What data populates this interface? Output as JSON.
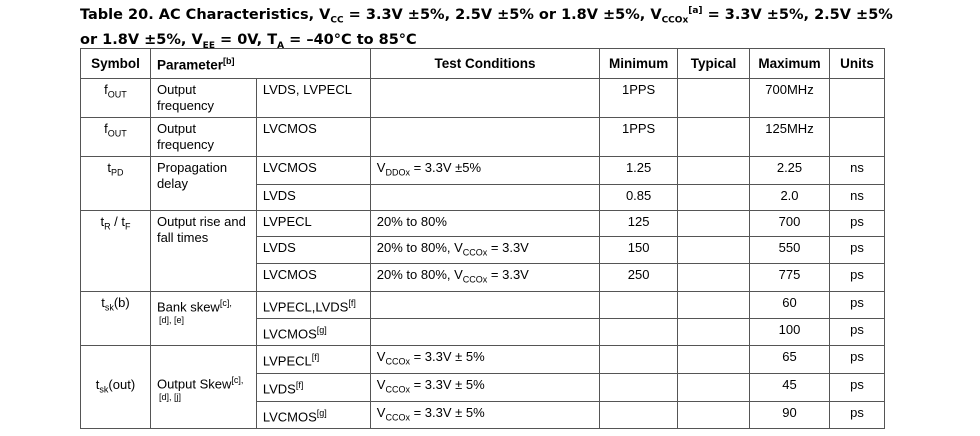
{
  "title": [
    {
      "t": "Table 20.  AC Characteristics, V"
    },
    {
      "sub": "CC"
    },
    {
      "t": " = 3.3V ±5%, 2.5V ±5% or 1.8V ±5%, V"
    },
    {
      "sub": "CCOx"
    },
    {
      "sup": "[a]"
    },
    {
      "t": " = 3.3V ±5%, 2.5V ±5% or 1.8V ±5%, V"
    },
    {
      "sub": "EE"
    },
    {
      "t": " = 0V, T"
    },
    {
      "sub": "A"
    },
    {
      "t": " = –40°C to 85°C"
    }
  ],
  "table": {
    "header": [
      [
        {
          "t": "Symbol"
        }
      ],
      [
        {
          "t": "Parameter"
        },
        {
          "sup": "[b]"
        }
      ],
      [
        {
          "t": "Test Conditions"
        }
      ],
      [
        {
          "t": "Minimum"
        }
      ],
      [
        {
          "t": "Typical"
        }
      ],
      [
        {
          "t": "Maximum"
        }
      ],
      [
        {
          "t": "Units"
        }
      ]
    ],
    "groups": [
      {
        "symbol": [
          {
            "t": "f"
          },
          {
            "sub": "OUT"
          }
        ],
        "parameter": [
          {
            "t": "Output frequency"
          }
        ],
        "lines": [
          {
            "type": [
              {
                "t": "LVDS, LVPECL"
              }
            ],
            "min": "1PPS",
            "max": "700MHz"
          }
        ]
      },
      {
        "symbol": [
          {
            "t": "f"
          },
          {
            "sub": "OUT"
          }
        ],
        "parameter": [
          {
            "t": "Output frequency"
          }
        ],
        "lines": [
          {
            "type": [
              {
                "t": "LVCMOS"
              }
            ],
            "min": "1PPS",
            "max": "125MHz"
          }
        ]
      },
      {
        "symbol": [
          {
            "t": "t"
          },
          {
            "sub": "PD"
          }
        ],
        "parameter": [
          {
            "t": "Propagation delay"
          }
        ],
        "lines": [
          {
            "type": [
              {
                "t": "LVCMOS"
              }
            ],
            "conditions": [
              {
                "t": "V"
              },
              {
                "sub": "DDOx"
              },
              {
                "t": " = 3.3V ±5%"
              }
            ],
            "min": "1.25",
            "max": "2.25",
            "units": "ns"
          },
          {
            "type": [
              {
                "t": "LVDS"
              }
            ],
            "min": "0.85",
            "max": "2.0",
            "units": "ns"
          }
        ]
      },
      {
        "symbol": [
          {
            "t": "t"
          },
          {
            "sub": "R"
          },
          {
            "t": " / t"
          },
          {
            "sub": "F"
          }
        ],
        "parameter": [
          {
            "t": "Output rise and fall times"
          }
        ],
        "lines": [
          {
            "type": [
              {
                "t": "LVPECL"
              }
            ],
            "conditions": [
              {
                "t": "20% to 80%"
              }
            ],
            "min": "125",
            "max": "700",
            "units": "ps"
          },
          {
            "type": [
              {
                "t": "LVDS"
              }
            ],
            "conditions": [
              {
                "t": "20% to 80%, V"
              },
              {
                "sub": "CCOx"
              },
              {
                "t": " = 3.3V"
              }
            ],
            "min": "150",
            "max": "550",
            "units": "ps"
          },
          {
            "type": [
              {
                "t": "LVCMOS"
              }
            ],
            "conditions": [
              {
                "t": "20% to 80%, V"
              },
              {
                "sub": "CCOx"
              },
              {
                "t": " = 3.3V"
              }
            ],
            "min": "250",
            "max": "775",
            "units": "ps"
          }
        ]
      },
      {
        "symbol": [
          {
            "t": "t"
          },
          {
            "sub": "sk"
          },
          {
            "t": "(b)"
          }
        ],
        "parameter": [
          {
            "t": "Bank skew"
          },
          {
            "sup": "[c],"
          },
          {
            "note": "[d], [e]"
          }
        ],
        "lines": [
          {
            "type": [
              {
                "t": "LVPECL,LVDS"
              },
              {
                "sup": "[f]"
              }
            ],
            "max": "60",
            "units": "ps"
          },
          {
            "type": [
              {
                "t": "LVCMOS"
              },
              {
                "sup": "[g]"
              }
            ],
            "max": "100",
            "units": "ps"
          }
        ]
      },
      {
        "symbol": [
          {
            "t": "t"
          },
          {
            "sub": "sk"
          },
          {
            "t": "(out)"
          }
        ],
        "parameter": [
          {
            "t": "Output Skew"
          },
          {
            "sup": "[c],"
          },
          {
            "note": "[d], [j]"
          }
        ],
        "lines": [
          {
            "type": [
              {
                "t": "LVPECL"
              },
              {
                "sup": "[f]"
              }
            ],
            "conditions": [
              {
                "t": "V"
              },
              {
                "sub": "CCOx"
              },
              {
                "t": " = 3.3V ± 5%"
              }
            ],
            "max": "65",
            "units": "ps"
          },
          {
            "type": [
              {
                "t": "LVDS"
              },
              {
                "sup": "[f]"
              }
            ],
            "conditions": [
              {
                "t": "V"
              },
              {
                "sub": "CCOx"
              },
              {
                "t": " = 3.3V ± 5%"
              }
            ],
            "max": "45",
            "units": "ps"
          },
          {
            "type": [
              {
                "t": "LVCMOS"
              },
              {
                "sup": "[g]"
              }
            ],
            "conditions": [
              {
                "t": "V"
              },
              {
                "sub": "CCOx"
              },
              {
                "t": " = 3.3V ± 5%"
              }
            ],
            "max": "90",
            "units": "ps"
          }
        ]
      }
    ]
  }
}
